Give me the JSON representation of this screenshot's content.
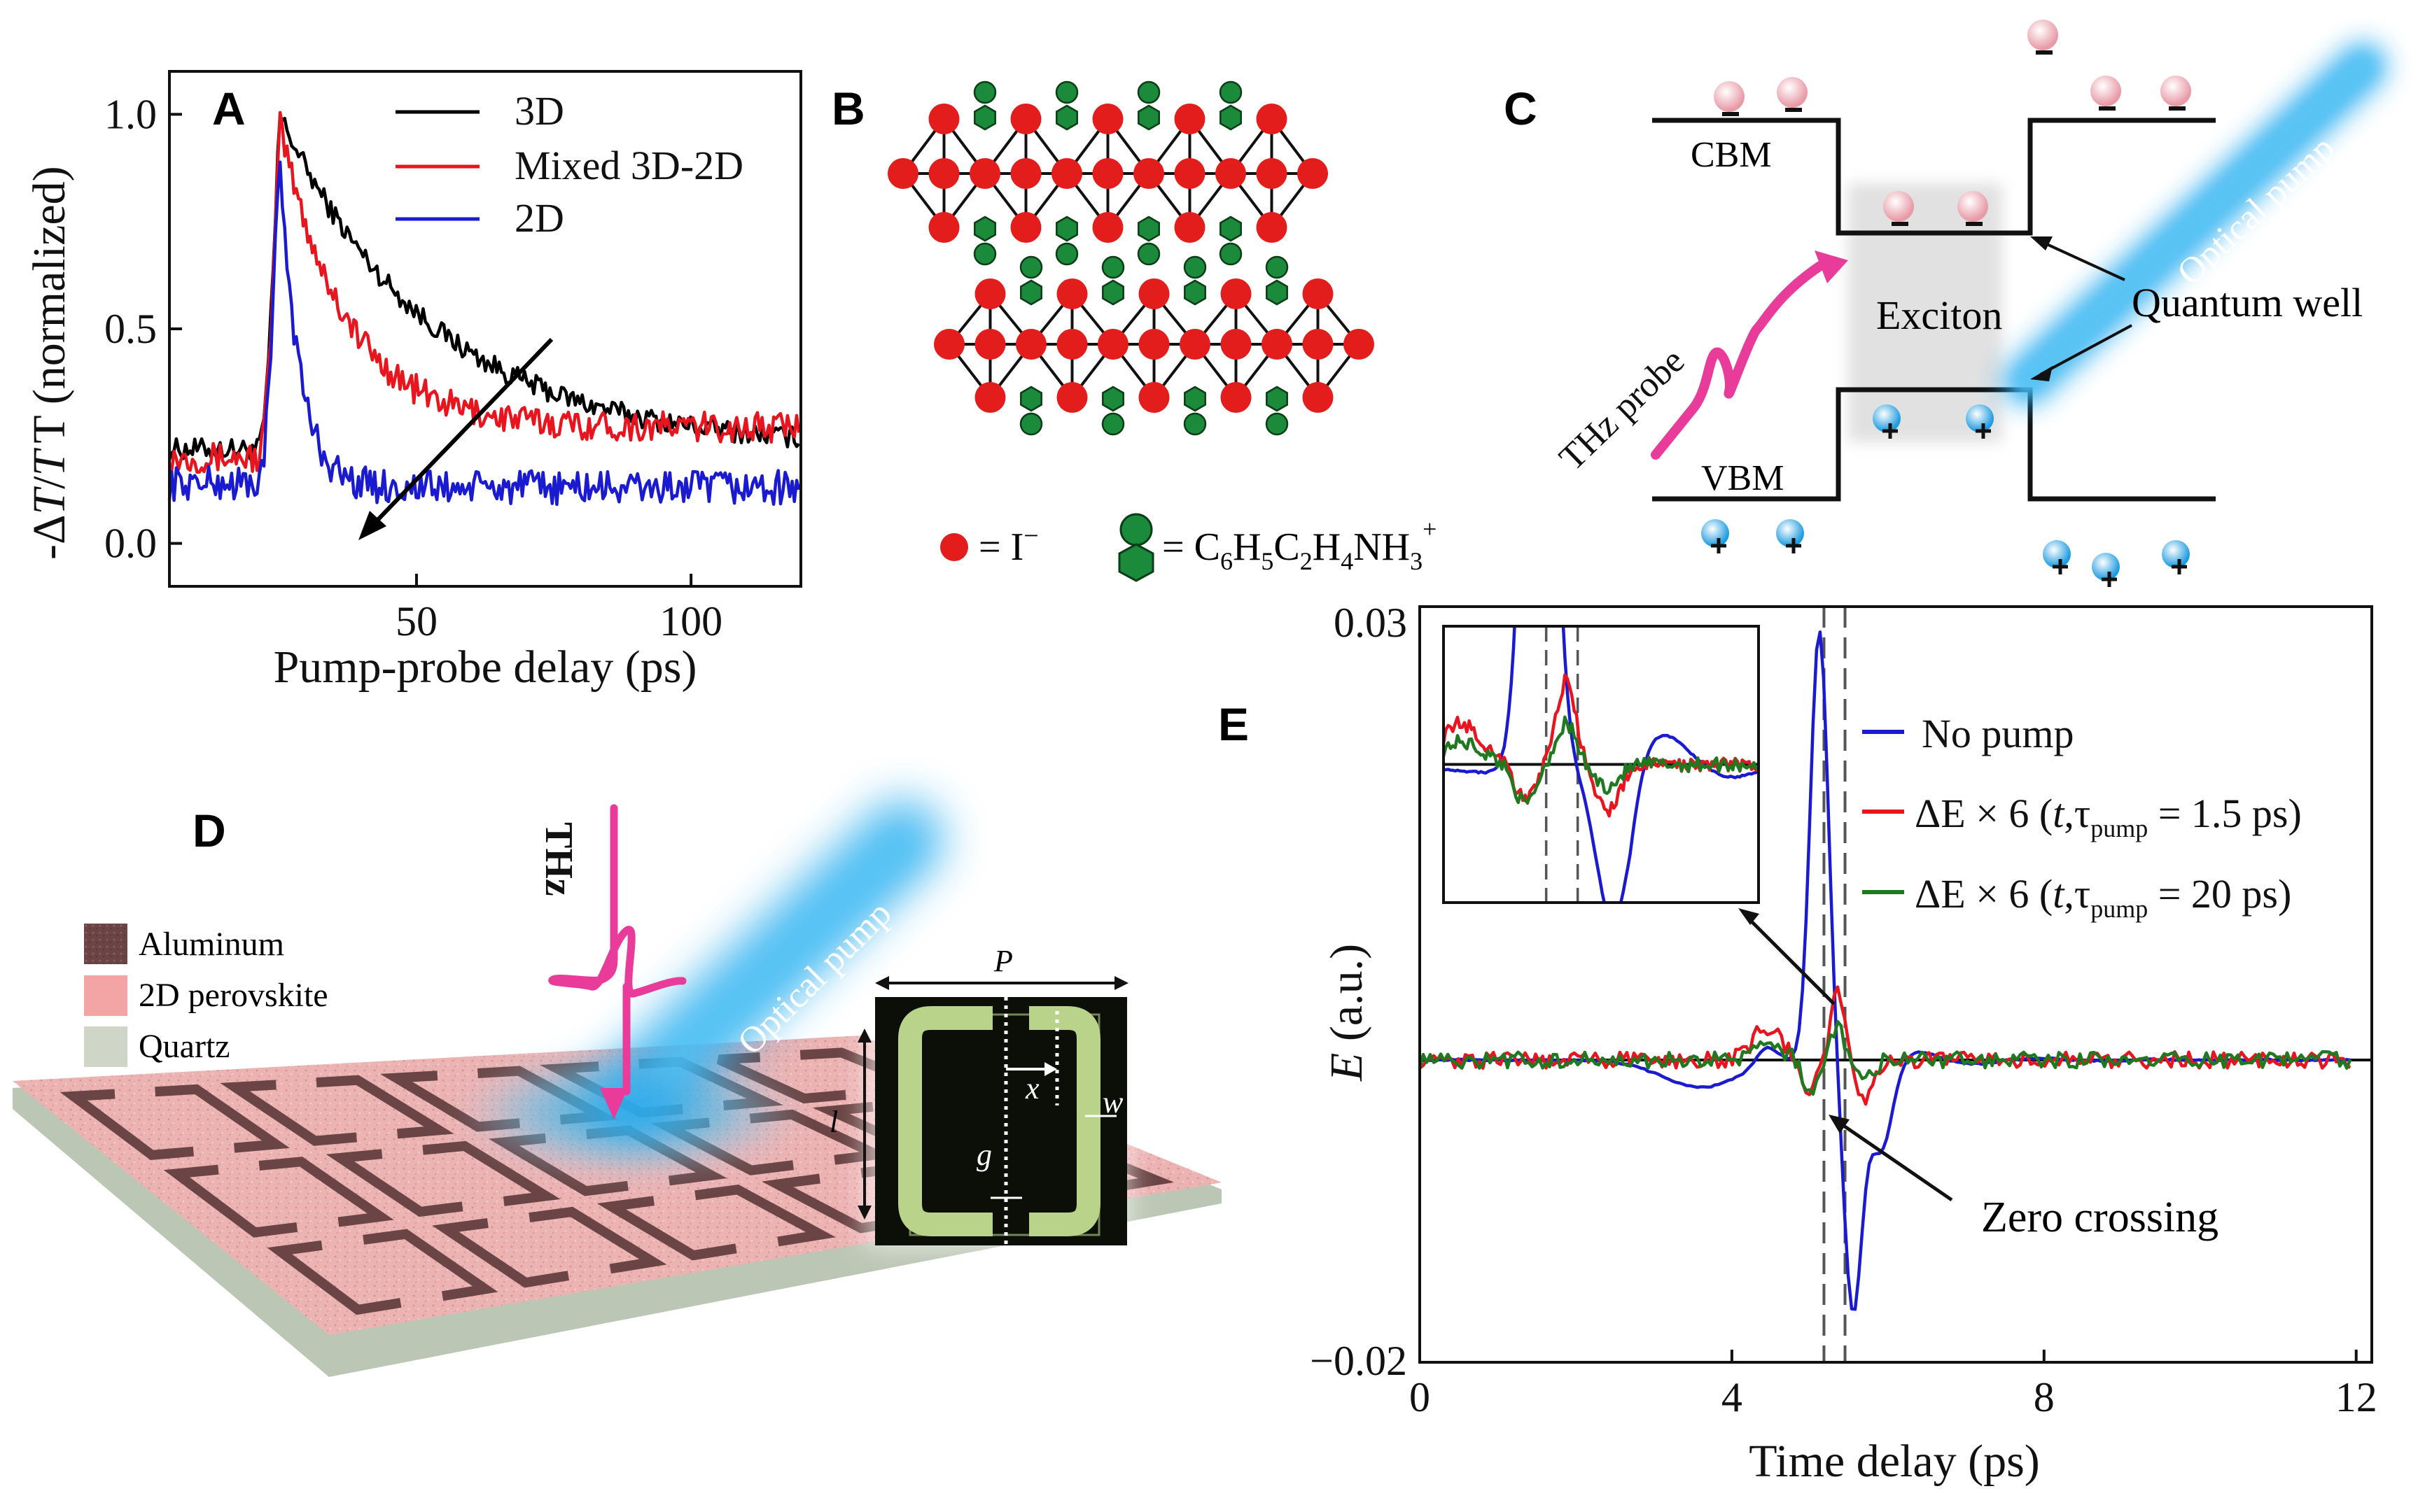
{
  "panels": {
    "a": "A",
    "b": "B",
    "c": "C",
    "d": "D",
    "e": "E"
  },
  "chart_data": [
    {
      "id": "A",
      "type": "line",
      "xlabel": "Pump-probe delay (ps)",
      "ylabel": "-ΔT/T (normalized)",
      "xlim": [
        5,
        120
      ],
      "ylim": [
        -0.1,
        1.1
      ],
      "xticks": [
        "50",
        "100"
      ],
      "yticks": [
        "0.0",
        "0.5",
        "1.0"
      ],
      "legend_position": "top-right",
      "series": [
        {
          "name": "3D",
          "color": "#000000",
          "baseline": 0.22,
          "peak_x": 25,
          "peak": 1.0,
          "tau": 28,
          "tail": 0.22,
          "noise": 0.025
        },
        {
          "name": "Mixed 3D-2D",
          "color": "#e8141e",
          "baseline": 0.2,
          "peak_x": 25,
          "peak": 0.98,
          "tau": 12,
          "tail": 0.27,
          "noise": 0.035
        },
        {
          "name": "2D",
          "color": "#1a1ad0",
          "baseline": 0.14,
          "peak_x": 25,
          "peak": 0.93,
          "tau": 3.5,
          "tail": 0.13,
          "noise": 0.04
        }
      ]
    },
    {
      "id": "E",
      "type": "line",
      "xlabel": "Time delay (ps)",
      "ylabel": "E (a.u.)",
      "xlim": [
        0,
        12.2
      ],
      "ylim": [
        -0.02,
        0.03
      ],
      "xticks": [
        "0",
        "4",
        "8",
        "12"
      ],
      "yticks_labeled": [
        "-0.02",
        "0.03"
      ],
      "zero_crossings_ps": [
        5.18,
        5.45
      ],
      "series": [
        {
          "name": "No pump",
          "color": "#1a1ad0"
        },
        {
          "name": "ΔE × 6 (t,τpump = 1.5 ps)",
          "color": "#e8141e"
        },
        {
          "name": "ΔE × 6 (t,τpump = 20 ps)",
          "color": "#1f7a1f"
        }
      ]
    }
  ],
  "panel_a": {
    "legend": [
      "3D",
      "Mixed 3D-2D",
      "2D"
    ],
    "ylabel_main": "T (normalized)",
    "ylabel_prefix": "-Δ",
    "xlabel": "Pump-probe delay (ps)"
  },
  "panel_b": {
    "legend_iodide": "= I",
    "legend_iodide_sup": "−",
    "legend_cation_eq": "= C",
    "formula_parts": [
      "6",
      "H",
      "5",
      "C",
      "2",
      "H",
      "4",
      "NH",
      "3",
      "+"
    ]
  },
  "panel_c": {
    "cbm": "CBM",
    "vbm": "VBM",
    "exciton": "Exciton",
    "quantum_well": "Quantum well",
    "optical_pump": "Optical pump",
    "thz_probe": "THz probe"
  },
  "panel_d": {
    "legend": [
      "Aluminum",
      "2D perovskite",
      "Quartz"
    ],
    "legend_colors": [
      "#6e4b4b",
      "#f3a5a5",
      "#cfd6c8"
    ],
    "thz": "THz",
    "optical_pump": "Optical pump",
    "dims": {
      "p": "P",
      "l": "l",
      "x": "x",
      "g": "g",
      "w": "w"
    }
  },
  "panel_e": {
    "legend": [
      {
        "text": "No pump"
      },
      {
        "prefix": "ΔE × 6 (",
        "it": "t",
        "mid": ",τ",
        "sub": "pump",
        "suffix": " = 1.5 ps)"
      },
      {
        "prefix": "ΔE × 6 (",
        "it": "t",
        "mid": ",τ",
        "sub": "pump",
        "suffix": " =  20 ps)"
      }
    ],
    "ylabel_italic": "E",
    "ylabel_rest": " (a.u.)",
    "xlabel": "Time delay (ps)",
    "zero_crossing": "Zero crossing",
    "ytick_top": "0.03",
    "ytick_bottom": "−0.02",
    "xticks": [
      "0",
      "4",
      "8",
      "12"
    ]
  }
}
